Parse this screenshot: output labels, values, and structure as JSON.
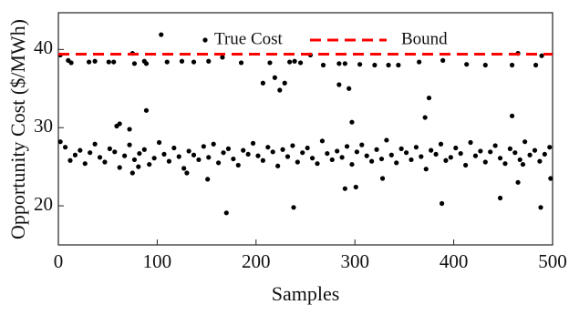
{
  "chart_data": {
    "type": "scatter",
    "xlabel": "Samples",
    "ylabel": "Opportunity Cost ($/MWh)",
    "xlim": [
      0,
      500
    ],
    "ylim": [
      15,
      44.7
    ],
    "xticks": [
      0,
      100,
      200,
      300,
      400,
      500
    ],
    "yticks": [
      20,
      30,
      40
    ],
    "x": [
      2,
      7,
      12,
      17,
      22,
      27,
      32,
      37,
      42,
      47,
      52,
      57,
      62,
      67,
      72,
      77,
      82,
      87,
      92,
      97,
      102,
      107,
      112,
      117,
      122,
      127,
      132,
      137,
      142,
      147,
      152,
      157,
      162,
      167,
      172,
      177,
      182,
      187,
      192,
      197,
      202,
      207,
      212,
      217,
      222,
      227,
      232,
      237,
      242,
      247,
      252,
      257,
      262,
      267,
      272,
      277,
      282,
      287,
      292,
      297,
      302,
      307,
      312,
      317,
      322,
      327,
      332,
      337,
      342,
      347,
      352,
      357,
      362,
      367,
      372,
      377,
      382,
      387,
      392,
      397,
      402,
      407,
      412,
      417,
      422,
      427,
      432,
      437,
      442,
      447,
      452,
      457,
      462,
      467,
      472,
      477,
      482,
      487,
      492,
      497,
      2,
      10,
      13,
      31,
      37,
      51,
      56,
      75,
      77,
      87,
      89,
      104,
      110,
      125,
      137,
      152,
      166,
      185,
      214,
      234,
      239,
      245,
      255,
      268,
      284,
      290,
      305,
      320,
      334,
      344,
      365,
      389,
      413,
      432,
      459,
      465,
      483,
      489,
      89,
      59,
      62,
      72,
      207,
      219,
      224,
      229,
      284,
      294,
      297,
      371,
      375,
      459,
      170,
      238,
      388,
      447,
      488,
      498,
      290,
      301,
      328,
      151,
      130,
      75,
      81,
      465,
      470
    ],
    "series": [
      {
        "name": "True Cost",
        "color": "#000000",
        "values": [
          28.2,
          27.5,
          25.8,
          26.5,
          27.1,
          25.4,
          26.8,
          27.9,
          26.2,
          25.6,
          27.3,
          26.9,
          24.9,
          26.4,
          27.8,
          25.9,
          26.7,
          27.2,
          25.3,
          26.1,
          28.1,
          26.6,
          25.7,
          27.4,
          26.3,
          24.8,
          27.0,
          26.5,
          25.9,
          27.6,
          26.2,
          27.9,
          25.5,
          26.8,
          27.3,
          26.0,
          25.2,
          27.1,
          26.6,
          28.0,
          26.4,
          25.8,
          27.5,
          26.9,
          25.1,
          27.2,
          26.3,
          27.7,
          25.6,
          26.8,
          27.4,
          26.1,
          25.4,
          28.3,
          26.7,
          25.9,
          27.0,
          26.2,
          27.6,
          25.3,
          26.9,
          27.8,
          26.4,
          25.7,
          27.2,
          26.0,
          28.4,
          26.5,
          25.5,
          27.3,
          26.8,
          25.9,
          27.5,
          26.3,
          24.7,
          27.1,
          26.6,
          27.9,
          25.8,
          26.2,
          27.4,
          26.7,
          25.2,
          28.1,
          26.4,
          27.0,
          25.6,
          26.9,
          27.7,
          26.1,
          25.4,
          27.3,
          26.8,
          25.9,
          28.2,
          26.5,
          27.1,
          25.7,
          26.6,
          27.5,
          39.3,
          38.6,
          38.3,
          38.4,
          38.5,
          38.4,
          38.4,
          39.5,
          38.2,
          38.5,
          38.2,
          41.9,
          38.4,
          38.5,
          38.4,
          38.5,
          39.0,
          38.3,
          38.3,
          38.4,
          38.5,
          38.3,
          39.3,
          38.0,
          38.2,
          38.2,
          38.1,
          38.0,
          38.0,
          38.0,
          38.4,
          38.6,
          38.1,
          38.0,
          38.0,
          39.5,
          38.0,
          39.2,
          32.2,
          30.2,
          30.5,
          29.8,
          35.7,
          36.4,
          34.8,
          35.7,
          35.5,
          35.0,
          30.7,
          31.3,
          33.8,
          31.5,
          19.1,
          19.8,
          20.3,
          21.0,
          19.8,
          23.5,
          22.2,
          22.4,
          23.5,
          23.4,
          24.2,
          24.2,
          25.0,
          23.0,
          25.3
        ]
      },
      {
        "name": "Bound",
        "color": "#ff0000",
        "value": 39.4,
        "dashed": true
      }
    ]
  }
}
